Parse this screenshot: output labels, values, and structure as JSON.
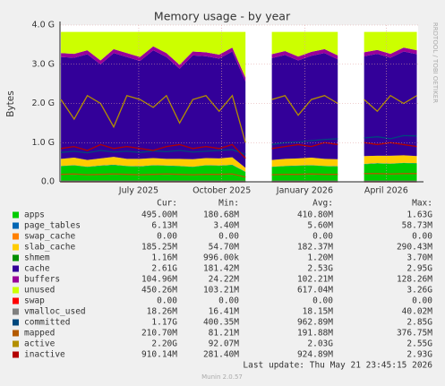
{
  "chart_data": {
    "type": "area",
    "title": "Memory usage - by year",
    "ylabel": "Bytes",
    "side_label": "RRDTOOL / TOBI OETIKER",
    "last_update": "Last update: Thu May 21 23:45:15 2026",
    "footer": "Munin 2.0.57",
    "column_headers": [
      "Cur:",
      "Min:",
      "Avg:",
      "Max:"
    ],
    "grid": true,
    "xlim": [
      2025.257,
      2026.344
    ],
    "xticks": [
      {
        "value": 2025.496,
        "label": "July 2025"
      },
      {
        "value": 2025.748,
        "label": "October 2025"
      },
      {
        "value": 2026.0,
        "label": "January 2026"
      },
      {
        "value": 2026.247,
        "label": "April 2026"
      }
    ],
    "ylim": [
      0,
      4
    ],
    "yticks": [
      {
        "value": 0,
        "label": "0.0"
      },
      {
        "value": 1,
        "label": "1.0 G"
      },
      {
        "value": 2,
        "label": "2.0 G"
      },
      {
        "value": 3,
        "label": "3.0 G"
      },
      {
        "value": 4,
        "label": "4.0 G"
      }
    ],
    "x": [
      2025.26,
      2025.3,
      2025.34,
      2025.38,
      2025.42,
      2025.46,
      2025.5,
      2025.54,
      2025.58,
      2025.62,
      2025.66,
      2025.7,
      2025.74,
      2025.78,
      2025.82,
      2025.86,
      2025.9,
      2025.94,
      2025.98,
      2026.02,
      2026.06,
      2026.1,
      2026.14,
      2026.18,
      2026.22,
      2026.26,
      2026.3,
      2026.34
    ],
    "series": [
      {
        "name": "apps",
        "style": "area",
        "color": "#00cc00",
        "cur": "495.00M",
        "min": "180.68M",
        "avg": "410.80M",
        "max": "1.63G",
        "values": [
          0.4,
          0.42,
          0.38,
          0.41,
          0.43,
          0.4,
          0.39,
          0.42,
          0.41,
          0.4,
          0.38,
          0.42,
          0.41,
          0.43,
          0.25,
          null,
          0.38,
          0.4,
          0.41,
          0.42,
          0.4,
          0.39,
          null,
          0.45,
          0.47,
          0.46,
          0.48,
          0.47
        ]
      },
      {
        "name": "page_tables",
        "style": "area",
        "color": "#0066b3",
        "cur": "6.13M",
        "min": "3.40M",
        "avg": "5.60M",
        "max": "58.73M",
        "values": [
          0.006,
          0.006,
          0.006,
          0.006,
          0.006,
          0.006,
          0.006,
          0.006,
          0.006,
          0.006,
          0.006,
          0.006,
          0.006,
          0.006,
          0.006,
          null,
          0.006,
          0.006,
          0.006,
          0.006,
          0.006,
          0.006,
          null,
          0.006,
          0.006,
          0.006,
          0.006,
          0.006
        ]
      },
      {
        "name": "swap_cache",
        "style": "area",
        "color": "#ff8000",
        "cur": "0.00",
        "min": "0.00",
        "avg": "0.00",
        "max": "0.00",
        "values": [
          0,
          0,
          0,
          0,
          0,
          0,
          0,
          0,
          0,
          0,
          0,
          0,
          0,
          0,
          0,
          null,
          0,
          0,
          0,
          0,
          0,
          0,
          null,
          0,
          0,
          0,
          0,
          0
        ]
      },
      {
        "name": "slab_cache",
        "style": "area",
        "color": "#ffcc00",
        "cur": "185.25M",
        "min": "54.70M",
        "avg": "182.37M",
        "max": "290.43M",
        "values": [
          0.18,
          0.19,
          0.17,
          0.18,
          0.2,
          0.18,
          0.19,
          0.18,
          0.17,
          0.18,
          0.19,
          0.18,
          0.18,
          0.19,
          0.1,
          null,
          0.17,
          0.18,
          0.18,
          0.19,
          0.18,
          0.18,
          null,
          0.2,
          0.19,
          0.2,
          0.19,
          0.18
        ]
      },
      {
        "name": "shmem",
        "style": "area",
        "color": "#008f00",
        "cur": "1.16M",
        "min": "996.00k",
        "avg": "1.20M",
        "max": "3.70M",
        "values": [
          0.001,
          0.001,
          0.001,
          0.001,
          0.001,
          0.001,
          0.001,
          0.001,
          0.001,
          0.001,
          0.001,
          0.001,
          0.001,
          0.001,
          0.001,
          null,
          0.001,
          0.001,
          0.001,
          0.001,
          0.001,
          0.001,
          null,
          0.001,
          0.001,
          0.001,
          0.001,
          0.001
        ]
      },
      {
        "name": "cache",
        "style": "area",
        "color": "#330099",
        "cur": "2.61G",
        "min": "181.42M",
        "avg": "2.53G",
        "max": "2.95G",
        "values": [
          2.6,
          2.55,
          2.7,
          2.4,
          2.65,
          2.6,
          2.5,
          2.75,
          2.6,
          2.3,
          2.65,
          2.6,
          2.55,
          2.7,
          2.2,
          null,
          2.6,
          2.65,
          2.5,
          2.6,
          2.7,
          2.55,
          null,
          2.55,
          2.6,
          2.5,
          2.65,
          2.6
        ]
      },
      {
        "name": "buffers",
        "style": "area",
        "color": "#990099",
        "cur": "104.96M",
        "min": "24.22M",
        "avg": "102.21M",
        "max": "128.26M",
        "values": [
          0.1,
          0.1,
          0.1,
          0.1,
          0.1,
          0.1,
          0.1,
          0.1,
          0.1,
          0.1,
          0.1,
          0.1,
          0.1,
          0.1,
          0.1,
          null,
          0.1,
          0.1,
          0.1,
          0.1,
          0.1,
          0.1,
          null,
          0.1,
          0.1,
          0.1,
          0.1,
          0.1
        ]
      },
      {
        "name": "unused",
        "style": "area",
        "color": "#ccff00",
        "cur": "450.26M",
        "min": "103.21M",
        "avg": "617.04M",
        "max": "3.26G",
        "values": [
          0.54,
          0.56,
          0.47,
          0.73,
          0.44,
          0.54,
          0.64,
          0.37,
          0.54,
          0.84,
          0.5,
          0.52,
          0.58,
          0.4,
          1.17,
          null,
          0.57,
          0.49,
          0.63,
          0.51,
          0.44,
          0.6,
          null,
          0.52,
          0.46,
          0.56,
          0.4,
          0.47
        ]
      },
      {
        "name": "swap",
        "style": "line",
        "color": "#ff0000",
        "cur": "0.00",
        "min": "0.00",
        "avg": "0.00",
        "max": "0.00",
        "values": [
          0,
          0,
          0,
          0,
          0,
          0,
          0,
          0,
          0,
          0,
          0,
          0,
          0,
          0,
          0,
          null,
          0,
          0,
          0,
          0,
          0,
          0,
          null,
          0,
          0,
          0,
          0,
          0
        ]
      },
      {
        "name": "vmalloc_used",
        "style": "line",
        "color": "#808080",
        "cur": "18.26M",
        "min": "16.41M",
        "avg": "18.15M",
        "max": "40.02M",
        "values": [
          0.018,
          0.018,
          0.018,
          0.018,
          0.018,
          0.018,
          0.018,
          0.018,
          0.018,
          0.018,
          0.018,
          0.018,
          0.018,
          0.018,
          0.018,
          null,
          0.018,
          0.018,
          0.018,
          0.018,
          0.018,
          0.018,
          null,
          0.018,
          0.018,
          0.018,
          0.018,
          0.018
        ]
      },
      {
        "name": "committed",
        "style": "line",
        "color": "#00487d",
        "cur": "1.17G",
        "min": "400.35M",
        "avg": "962.89M",
        "max": "2.85G",
        "values": [
          0.75,
          0.78,
          0.74,
          0.8,
          0.76,
          0.78,
          0.75,
          0.79,
          0.77,
          0.8,
          0.76,
          0.78,
          0.8,
          0.82,
          0.7,
          null,
          0.95,
          1.0,
          1.02,
          1.05,
          1.08,
          1.1,
          null,
          1.12,
          1.15,
          1.1,
          1.18,
          1.17
        ]
      },
      {
        "name": "mapped",
        "style": "line",
        "color": "#b35a00",
        "cur": "210.70M",
        "min": "81.21M",
        "avg": "191.88M",
        "max": "376.75M",
        "values": [
          0.19,
          0.2,
          0.18,
          0.19,
          0.2,
          0.19,
          0.18,
          0.19,
          0.2,
          0.19,
          0.18,
          0.19,
          0.19,
          0.2,
          0.12,
          null,
          0.18,
          0.19,
          0.19,
          0.2,
          0.19,
          0.19,
          null,
          0.21,
          0.21,
          0.2,
          0.21,
          0.21
        ]
      },
      {
        "name": "active",
        "style": "line",
        "color": "#b38f00",
        "cur": "2.20G",
        "min": "92.07M",
        "avg": "2.03G",
        "max": "2.55G",
        "values": [
          2.1,
          1.6,
          2.2,
          2.0,
          1.4,
          2.2,
          2.1,
          1.9,
          2.2,
          1.5,
          2.1,
          2.2,
          1.8,
          2.2,
          1.0,
          null,
          2.1,
          2.2,
          1.7,
          2.1,
          2.2,
          2.0,
          null,
          2.1,
          1.8,
          2.2,
          2.0,
          2.2
        ]
      },
      {
        "name": "inactive",
        "style": "line",
        "color": "#b30000",
        "cur": "910.14M",
        "min": "281.40M",
        "avg": "924.89M",
        "max": "2.93G",
        "values": [
          0.85,
          0.9,
          0.8,
          0.95,
          0.85,
          0.9,
          0.85,
          0.8,
          0.9,
          0.95,
          0.85,
          0.9,
          0.85,
          0.95,
          0.6,
          null,
          0.85,
          0.9,
          0.95,
          0.9,
          1.0,
          0.95,
          null,
          1.0,
          0.95,
          1.0,
          0.95,
          0.9
        ]
      }
    ]
  }
}
